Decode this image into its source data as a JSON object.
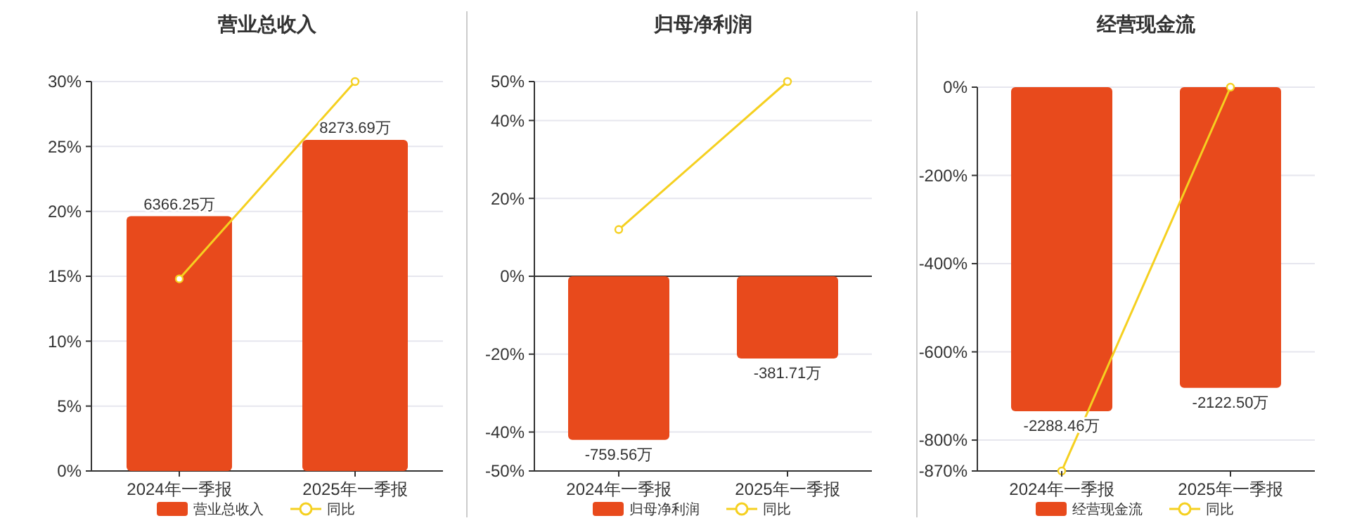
{
  "chart_data": [
    {
      "type": "bar",
      "title": "营业总收入",
      "categories": [
        "2024年一季报",
        "2025年一季报"
      ],
      "series": [
        {
          "name": "营业总收入",
          "type": "bar",
          "axis": "y2",
          "color": "#e84a1c",
          "values": [
            6366.25,
            8273.69
          ],
          "value_labels": [
            "6366.25万",
            "8273.69万"
          ]
        },
        {
          "name": "同比",
          "type": "line",
          "color": "#f5d020",
          "values": [
            14.8,
            30
          ]
        }
      ],
      "ylim": [
        0,
        30
      ],
      "yticks": [
        {
          "value": 0,
          "label": "0%"
        },
        {
          "value": 5,
          "label": "5%"
        },
        {
          "value": 10,
          "label": "10%"
        },
        {
          "value": 15,
          "label": "15%"
        },
        {
          "value": 20,
          "label": "20%"
        },
        {
          "value": 25,
          "label": "25%"
        },
        {
          "value": 30,
          "label": "30%"
        }
      ],
      "y2lim": [
        0,
        9730
      ],
      "tick_labels": "xy",
      "grid": "y",
      "legend": "bottom",
      "marker": "circle"
    },
    {
      "type": "bar",
      "title": "归母净利润",
      "categories": [
        "2024年一季报",
        "2025年一季报"
      ],
      "series": [
        {
          "name": "归母净利润",
          "type": "bar",
          "axis": "y2",
          "color": "#e84a1c",
          "values": [
            -759.56,
            -381.71
          ],
          "value_labels": [
            "-759.56万",
            "-381.71万"
          ]
        },
        {
          "name": "同比",
          "type": "line",
          "color": "#f5d020",
          "values": [
            12,
            50
          ]
        }
      ],
      "ylim": [
        -50,
        50
      ],
      "yticks": [
        {
          "value": -50,
          "label": "-50%"
        },
        {
          "value": -40,
          "label": "-40%"
        },
        {
          "value": -20,
          "label": "-20%"
        },
        {
          "value": 0,
          "label": "0%"
        },
        {
          "value": 20,
          "label": "20%"
        },
        {
          "value": 40,
          "label": "40%"
        },
        {
          "value": 50,
          "label": "50%"
        }
      ],
      "y2lim": [
        -904,
        904
      ],
      "tick_labels": "xy",
      "grid": "y",
      "legend": "bottom",
      "marker": "circle"
    },
    {
      "type": "bar",
      "title": "经营现金流",
      "categories": [
        "2024年一季报",
        "2025年一季报"
      ],
      "series": [
        {
          "name": "经营现金流",
          "type": "bar",
          "axis": "y2",
          "color": "#e84a1c",
          "values": [
            -2288.46,
            -2122.5
          ],
          "value_labels": [
            "-2288.46万",
            "-2122.50万"
          ]
        },
        {
          "name": "同比",
          "type": "line",
          "color": "#f5d020",
          "values": [
            -870,
            0
          ]
        }
      ],
      "ylim": [
        -870,
        0
      ],
      "yticks": [
        {
          "value": -870,
          "label": "-870%"
        },
        {
          "value": -800,
          "label": "-800%"
        },
        {
          "value": -600,
          "label": "-600%"
        },
        {
          "value": -400,
          "label": "-400%"
        },
        {
          "value": -200,
          "label": "-200%"
        },
        {
          "value": 0,
          "label": "0%"
        }
      ],
      "y2lim": [
        -2710,
        0
      ],
      "tick_labels": "xy",
      "grid": "y",
      "legend": "bottom",
      "marker": "circle"
    }
  ]
}
